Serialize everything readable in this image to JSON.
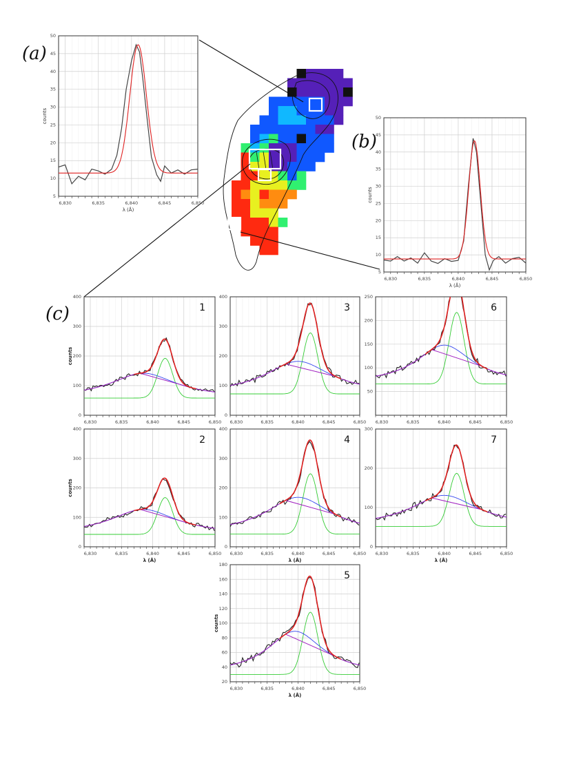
{
  "labels": {
    "a": "(a)",
    "b": "(b)",
    "c": "(c)"
  },
  "colors": {
    "observed": "#222222",
    "total_fit": "#e02020",
    "narrow": "#33cc33",
    "broad": "#3344ee",
    "combo": "#a020c0"
  },
  "map": {
    "legend": "Color-coded spaxel velocity map of the emission line (red = redshifted, violet = blueshifted), with intensity contours and three marked spaxels",
    "grid": [
      "...........KVVVV...",
      "..........VVVVVVV..",
      "..........KVVVVVK..",
      "........BBBBBBVVV..",
      "........BCCBBBVV...",
      ".......BBCCCBBBV...",
      "......BBBBBBBVV....",
      "......BCGBBKBBB....",
      ".....GCGVVVBBBB....",
      ".....RGYVVVBBB.....",
      ".....RYYVVBBB......",
      ".....RRYYGBG.......",
      "....RRYYYYGG.......",
      "....ROYROOO........",
      "....RRYOOO.........",
      "....RRYYY..........",
      ".....RRRYG.........",
      ".....RRRR..........",
      "......RRR..........",
      ".......RR.........."
    ],
    "palette": {
      "K": "#111111",
      "V": "#5520b8",
      "B": "#1058ff",
      "C": "#10b8ff",
      "G": "#30f070",
      "Y": "#e8f020",
      "O": "#ff8c10",
      "R": "#ff2a10"
    }
  },
  "chart_data": [
    {
      "id": "a",
      "type": "line",
      "title": "",
      "xlabel": "λ (Å)",
      "ylabel": "counts",
      "xlim": [
        6829,
        6850
      ],
      "ylim": [
        5,
        50
      ],
      "xticks": [
        6830,
        6835,
        6840,
        6845,
        6850
      ],
      "xtick_labels": [
        "6,830",
        "6,835",
        "6,840",
        "6,845",
        "6,850"
      ],
      "yticks": [
        5,
        10,
        15,
        20,
        25,
        30,
        35,
        40,
        45,
        50
      ],
      "series": [
        {
          "name": "observed",
          "kind": "observed",
          "x": [
            6829,
            6830,
            6831,
            6832,
            6833,
            6834,
            6835,
            6836,
            6837,
            6837.8,
            6838.5,
            6839.2,
            6840,
            6840.7,
            6841.2,
            6841.7,
            6842.4,
            6843,
            6843.8,
            6844.4,
            6845,
            6846,
            6847,
            6848,
            6849,
            6850
          ],
          "y": [
            13.2,
            13.8,
            8.5,
            10.6,
            9.6,
            12.6,
            12.1,
            11.2,
            12.6,
            16.5,
            24,
            35,
            43,
            47.5,
            45.5,
            38,
            26,
            16,
            11,
            9.2,
            13.5,
            11.5,
            12.4,
            11.2,
            12.4,
            12.6
          ]
        },
        {
          "name": "fit",
          "kind": "total",
          "model": "gauss",
          "base": 11.5,
          "components": [
            {
              "amp": 36,
              "mu": 6841,
              "sigma": 1.25
            }
          ]
        }
      ]
    },
    {
      "id": "b",
      "type": "line",
      "title": "",
      "xlabel": "λ (Å)",
      "ylabel": "counts",
      "xlim": [
        6829,
        6850
      ],
      "ylim": [
        5,
        50
      ],
      "xticks": [
        6830,
        6835,
        6840,
        6845,
        6850
      ],
      "xtick_labels": [
        "6,830",
        "6,835",
        "6,840",
        "6,845",
        "6,850"
      ],
      "yticks": [
        5,
        10,
        15,
        20,
        25,
        30,
        35,
        40,
        45,
        50
      ],
      "series": [
        {
          "name": "observed",
          "kind": "observed",
          "x": [
            6829,
            6830,
            6831,
            6832,
            6833,
            6834,
            6835,
            6836,
            6837,
            6838,
            6839,
            6840,
            6840.8,
            6841.5,
            6842.2,
            6842.7,
            6843.3,
            6844,
            6844.6,
            6845.2,
            6846,
            6847,
            6848,
            6849,
            6850
          ],
          "y": [
            8.5,
            8.2,
            9.5,
            8.2,
            9.1,
            7.6,
            10.6,
            8.2,
            7.5,
            8.9,
            8.1,
            8.4,
            14,
            30,
            44,
            40,
            26,
            10,
            5.6,
            8.4,
            9.5,
            7.6,
            8.9,
            9.3,
            7.6
          ]
        },
        {
          "name": "fit",
          "kind": "total",
          "model": "gauss",
          "base": 8.8,
          "components": [
            {
              "amp": 34.5,
              "mu": 6842.4,
              "sigma": 0.85
            }
          ]
        }
      ]
    },
    {
      "id": "c1",
      "number": "1",
      "type": "line",
      "title": "",
      "xlabel": "",
      "ylabel": "counts",
      "xlim": [
        6829,
        6850
      ],
      "ylim": [
        0,
        400
      ],
      "xticks": [
        6830,
        6835,
        6840,
        6845,
        6850
      ],
      "xtick_labels": [
        "6,830",
        "6,835",
        "6,840",
        "6,845",
        "6,850"
      ],
      "yticks": [
        0,
        100,
        200,
        300,
        400
      ],
      "series": [
        {
          "name": "observed",
          "kind": "observed",
          "base": 58,
          "noise": 5,
          "seed": 1
        },
        {
          "name": "fit",
          "kind": "total",
          "model": "lorentz+gauss",
          "base": 58,
          "components": [
            {
              "amp": 84,
              "mu": 6838.5,
              "gamma": 6.5
            },
            {
              "amp": 134,
              "mu": 6842,
              "sigma": 1.2
            }
          ]
        }
      ]
    },
    {
      "id": "c2",
      "number": "2",
      "type": "line",
      "title": "",
      "xlabel": "λ (Å)",
      "ylabel": "counts",
      "xlim": [
        6829,
        6850
      ],
      "ylim": [
        0,
        400
      ],
      "xticks": [
        6830,
        6835,
        6840,
        6845,
        6850
      ],
      "xtick_labels": [
        "6,830",
        "6,835",
        "6,840",
        "6,845",
        "6,850"
      ],
      "yticks": [
        0,
        100,
        200,
        300,
        400
      ],
      "series": [
        {
          "name": "observed",
          "kind": "observed",
          "base": 42,
          "noise": 5,
          "seed": 2
        },
        {
          "name": "fit",
          "kind": "total",
          "model": "lorentz+gauss",
          "base": 42,
          "components": [
            {
              "amp": 85,
              "mu": 6838.5,
              "gamma": 6.5
            },
            {
              "amp": 125,
              "mu": 6842,
              "sigma": 1.2
            }
          ]
        }
      ]
    },
    {
      "id": "c3",
      "number": "3",
      "type": "line",
      "title": "",
      "xlabel": "",
      "ylabel": "",
      "xlim": [
        6829,
        6850
      ],
      "ylim": [
        0,
        400
      ],
      "xticks": [
        6830,
        6835,
        6840,
        6845,
        6850
      ],
      "xtick_labels": [
        "6,830",
        "6,835",
        "6,840",
        "6,845",
        "6,850"
      ],
      "yticks": [
        0,
        100,
        200,
        300,
        400
      ],
      "series": [
        {
          "name": "observed",
          "kind": "observed",
          "base": 72,
          "noise": 6,
          "seed": 3
        },
        {
          "name": "fit",
          "kind": "total",
          "model": "lorentz+gauss",
          "base": 72,
          "components": [
            {
              "amp": 110,
              "mu": 6840,
              "gamma": 6.5
            },
            {
              "amp": 206,
              "mu": 6842,
              "sigma": 1.2
            }
          ]
        }
      ]
    },
    {
      "id": "c4",
      "number": "4",
      "type": "line",
      "title": "",
      "xlabel": "λ (Å)",
      "ylabel": "",
      "xlim": [
        6829,
        6850
      ],
      "ylim": [
        0,
        400
      ],
      "xticks": [
        6830,
        6835,
        6840,
        6845,
        6850
      ],
      "xtick_labels": [
        "6,830",
        "6,835",
        "6,840",
        "6,845",
        "6,850"
      ],
      "yticks": [
        0,
        100,
        200,
        300,
        400
      ],
      "series": [
        {
          "name": "observed",
          "kind": "observed",
          "base": 43,
          "noise": 6,
          "seed": 4
        },
        {
          "name": "fit",
          "kind": "total",
          "model": "lorentz+gauss",
          "base": 43,
          "components": [
            {
              "amp": 125,
              "mu": 6840,
              "gamma": 6.5
            },
            {
              "amp": 205,
              "mu": 6842,
              "sigma": 1.2
            }
          ]
        }
      ]
    },
    {
      "id": "c5",
      "number": "5",
      "type": "line",
      "title": "",
      "xlabel": "λ (Å)",
      "ylabel": "counts",
      "xlim": [
        6829,
        6850
      ],
      "ylim": [
        20,
        180
      ],
      "xticks": [
        6830,
        6835,
        6840,
        6845,
        6850
      ],
      "xtick_labels": [
        "6,830",
        "6,835",
        "6,840",
        "6,845",
        "6,850"
      ],
      "yticks": [
        20,
        40,
        60,
        80,
        100,
        120,
        140,
        160,
        180
      ],
      "series": [
        {
          "name": "observed",
          "kind": "observed",
          "base": 30,
          "noise": 3,
          "seed": 5
        },
        {
          "name": "fit",
          "kind": "total",
          "model": "lorentz+gauss",
          "base": 30,
          "components": [
            {
              "amp": 59,
              "mu": 6839.5,
              "gamma": 5.5
            },
            {
              "amp": 85,
              "mu": 6842,
              "sigma": 1.2
            }
          ]
        }
      ]
    },
    {
      "id": "c6",
      "number": "6",
      "type": "line",
      "title": "",
      "xlabel": "",
      "ylabel": "",
      "xlim": [
        6829,
        6850
      ],
      "ylim": [
        0,
        250
      ],
      "xticks": [
        6830,
        6835,
        6840,
        6845,
        6850
      ],
      "xtick_labels": [
        "6,830",
        "6,835",
        "6,840",
        "6,845",
        "6,850"
      ],
      "yticks": [
        50,
        100,
        150,
        200,
        250
      ],
      "series": [
        {
          "name": "observed",
          "kind": "observed",
          "base": 66,
          "noise": 4,
          "seed": 6
        },
        {
          "name": "fit",
          "kind": "total",
          "model": "lorentz+gauss",
          "base": 66,
          "components": [
            {
              "amp": 82,
              "mu": 6840,
              "gamma": 5.5
            },
            {
              "amp": 151,
              "mu": 6842,
              "sigma": 1.2
            }
          ]
        }
      ]
    },
    {
      "id": "c7",
      "number": "7",
      "type": "line",
      "title": "",
      "xlabel": "λ (Å)",
      "ylabel": "",
      "xlim": [
        6829,
        6850
      ],
      "ylim": [
        0,
        300
      ],
      "xticks": [
        6830,
        6835,
        6840,
        6845,
        6850
      ],
      "xtick_labels": [
        "6,830",
        "6,835",
        "6,840",
        "6,845",
        "6,850"
      ],
      "yticks": [
        0,
        100,
        200,
        300
      ],
      "series": [
        {
          "name": "observed",
          "kind": "observed",
          "base": 52,
          "noise": 5,
          "seed": 7
        },
        {
          "name": "fit",
          "kind": "total",
          "model": "lorentz+gauss",
          "base": 52,
          "components": [
            {
              "amp": 79,
              "mu": 6840,
              "gamma": 6.5
            },
            {
              "amp": 135,
              "mu": 6842,
              "sigma": 1.2
            }
          ]
        }
      ]
    }
  ]
}
